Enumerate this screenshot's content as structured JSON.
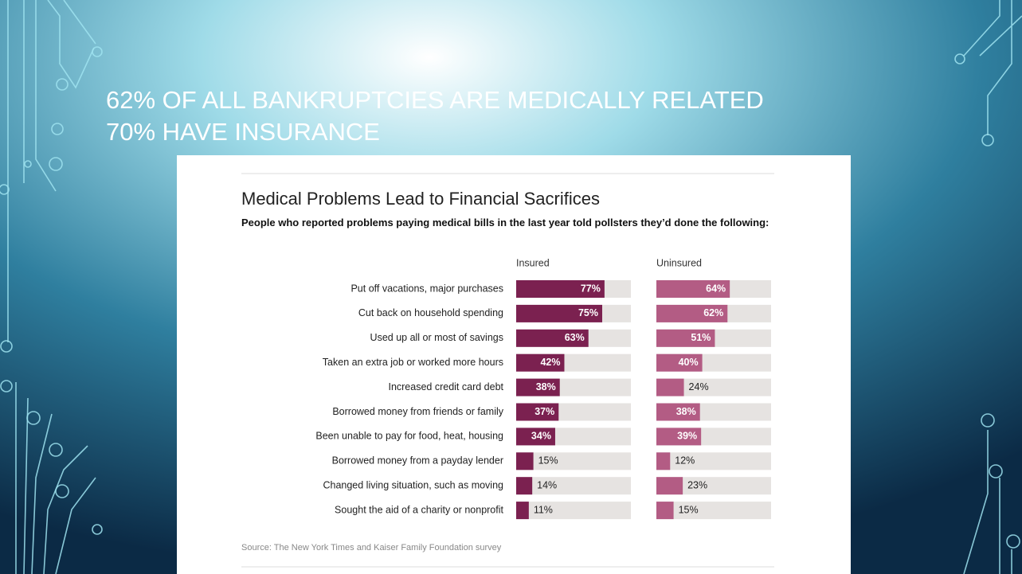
{
  "slide": {
    "title_lines": [
      "62% OF ALL BANKRUPTCIES ARE MEDICALLY RELATED",
      "70% HAVE INSURANCE"
    ]
  },
  "chart_data": {
    "type": "bar",
    "orientation": "horizontal",
    "title": "Medical Problems Lead to Financial Sacrifices",
    "subtitle": "People who reported problems paying medical bills in the last year told pollsters they’d done the following:",
    "categories": [
      "Put off vacations, major purchases",
      "Cut back on household spending",
      "Used up all or most of savings",
      "Taken an extra job or worked more hours",
      "Increased credit card debt",
      "Borrowed money from friends or family",
      "Been unable to pay for food, heat, housing",
      "Borrowed money from a payday lender",
      "Changed living situation, such as moving",
      "Sought the aid of a charity or nonprofit"
    ],
    "series": [
      {
        "name": "Insured",
        "color": "#7b2150",
        "values": [
          77,
          75,
          63,
          42,
          38,
          37,
          34,
          15,
          14,
          11
        ],
        "value_labels": [
          "77%",
          "75%",
          "63%",
          "42%",
          "38%",
          "37%",
          "34%",
          "15%",
          "14%",
          "11%"
        ]
      },
      {
        "name": "Uninsured",
        "color": "#b35c84",
        "values": [
          64,
          62,
          51,
          40,
          24,
          38,
          39,
          12,
          23,
          15
        ],
        "value_labels": [
          "64%",
          "62%",
          "51%",
          "40%",
          "24%",
          "38%",
          "39%",
          "12%",
          "23%",
          "15%"
        ]
      }
    ],
    "xlim": [
      0,
      100
    ],
    "track_color": "#e6e3e1",
    "source": "Source: The New York Times and Kaiser Family Foundation survey"
  }
}
